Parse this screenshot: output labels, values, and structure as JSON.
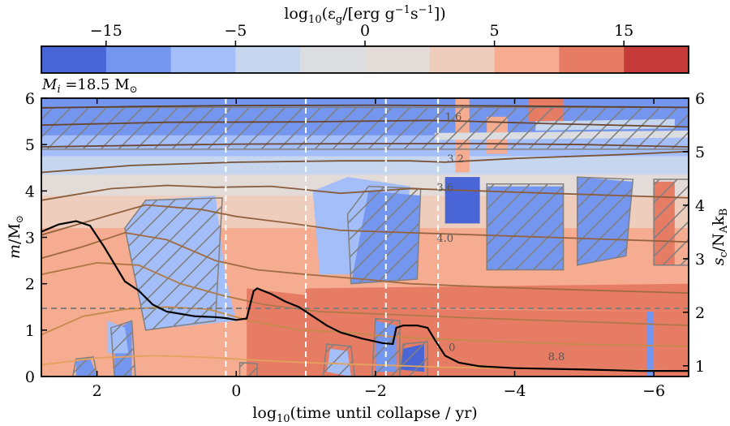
{
  "chart_data": {
    "type": "heatmap",
    "colorbar": {
      "label": "log10(εg/[erg g⁻¹s⁻¹])",
      "label_main": "log",
      "label_sub": "10",
      "label_rest": "(ε",
      "label_sub2": "g",
      "label_tail": "/[erg g",
      "label_sup1": "−1",
      "label_mid": "s",
      "label_sup2": "−1",
      "label_end": "])",
      "bins": [
        -20,
        -15,
        -10,
        -5,
        -2.5,
        0,
        2.5,
        5,
        10,
        15,
        20
      ],
      "colors": [
        "#4a66d6",
        "#7596ee",
        "#a3bef9",
        "#c6d6ef",
        "#dcdde1",
        "#e2dbd8",
        "#efcdbd",
        "#f5ac90",
        "#e77c65",
        "#c73a3a"
      ],
      "ticks": [
        {
          "value": -15,
          "label": "−15"
        },
        {
          "value": -5,
          "label": "−5"
        },
        {
          "value": 0,
          "label": "0"
        },
        {
          "value": 5,
          "label": "5"
        },
        {
          "value": 15,
          "label": "15"
        }
      ]
    },
    "annotation": "Mi =18.5 M⊙",
    "annotation_parts": {
      "m": "M",
      "i": "i",
      "eq": " =18.5 M",
      "sun": "⊙"
    },
    "x_axis": {
      "label": "log10(time until collapse / yr)",
      "range": [
        2.8,
        -6.5
      ],
      "ticks": [
        {
          "value": 2,
          "label": "2"
        },
        {
          "value": 0,
          "label": "0"
        },
        {
          "value": -2,
          "label": "−2"
        },
        {
          "value": -4,
          "label": "−4"
        },
        {
          "value": -6,
          "label": "−6"
        }
      ]
    },
    "y_axis_left": {
      "label": "m/M⊙",
      "range": [
        0,
        6
      ],
      "ticks": [
        0,
        1,
        2,
        3,
        4,
        5,
        6
      ]
    },
    "y_axis_right": {
      "label": "sc/NAkB",
      "range": [
        0.8,
        6
      ],
      "ticks": [
        1,
        2,
        3,
        4,
        5,
        6
      ]
    },
    "vertical_dashed_lines_x": [
      0.15,
      -1.0,
      -2.15,
      -2.9
    ],
    "horizontal_dashed_line_m": 1.47,
    "central_entropy": {
      "x": [
        2.8,
        2.55,
        2.3,
        2.1,
        1.9,
        1.6,
        1.4,
        1.2,
        1.0,
        0.6,
        0.3,
        0.15,
        0.0,
        -0.15,
        -0.25,
        -0.3,
        -0.5,
        -0.7,
        -0.9,
        -1.1,
        -1.3,
        -1.5,
        -1.8,
        -2.1,
        -2.25,
        -2.3,
        -2.4,
        -2.6,
        -2.75,
        -2.85,
        -3.0,
        -3.2,
        -3.5,
        -4.0,
        -5.0,
        -5.8,
        -6.5
      ],
      "y": [
        3.12,
        3.28,
        3.35,
        3.25,
        2.8,
        2.05,
        1.85,
        1.55,
        1.4,
        1.3,
        1.28,
        1.26,
        1.22,
        1.25,
        1.84,
        1.9,
        1.78,
        1.62,
        1.5,
        1.3,
        1.1,
        0.95,
        0.82,
        0.72,
        0.7,
        1.05,
        1.1,
        1.1,
        1.05,
        0.8,
        0.45,
        0.3,
        0.22,
        0.18,
        0.15,
        0.12,
        0.12
      ]
    },
    "mass_contours": [
      {
        "label": "",
        "x": [
          2.8,
          1.5,
          0.0,
          -2.0,
          -4.0,
          -6.5
        ],
        "y": [
          5.79,
          5.82,
          5.84,
          5.85,
          5.83,
          5.8
        ]
      },
      {
        "label": "1.6",
        "x": [
          2.8,
          1.0,
          -1.0,
          -2.8,
          -3.4,
          -4.5,
          -6.5
        ],
        "y": [
          5.42,
          5.48,
          5.49,
          5.52,
          5.5,
          5.45,
          5.38
        ]
      },
      {
        "label": "",
        "x": [
          2.8,
          1.5,
          0.0,
          -2.0,
          -3.5,
          -5.0,
          -6.5
        ],
        "y": [
          4.95,
          4.98,
          5.01,
          5.02,
          5.02,
          5.0,
          4.95
        ]
      },
      {
        "label": "3.2",
        "x": [
          2.8,
          1.5,
          0.0,
          -1.5,
          -2.5,
          -3.0,
          -4.0,
          -5.5,
          -6.5
        ],
        "y": [
          4.4,
          4.55,
          4.62,
          4.65,
          4.65,
          4.62,
          4.7,
          4.78,
          4.85
        ]
      },
      {
        "label": "3.6",
        "x": [
          2.8,
          1.8,
          1.0,
          0.3,
          -0.5,
          -1.5,
          -2.5,
          -3.5,
          -4.5,
          -5.5,
          -6.5
        ],
        "y": [
          3.8,
          4.05,
          4.12,
          4.08,
          4.1,
          3.95,
          4.05,
          4.0,
          3.95,
          3.9,
          3.85
        ]
      },
      {
        "label": "",
        "x": [
          2.8,
          2.0,
          1.3,
          0.5,
          0.0,
          -0.8,
          -1.5,
          -2.5,
          -3.5,
          -4.5,
          -5.5,
          -6.5
        ],
        "y": [
          3.05,
          3.4,
          3.7,
          3.6,
          3.45,
          3.3,
          3.15,
          3.1,
          3.05,
          3.0,
          2.95,
          2.9
        ]
      },
      {
        "label": "4.0",
        "x": [
          2.8,
          2.2,
          1.6,
          1.0,
          0.3,
          -0.3,
          -1.0,
          -1.8,
          -2.5,
          -3.3,
          -4.2,
          -5.3,
          -6.5
        ],
        "y": [
          2.55,
          2.8,
          3.1,
          2.95,
          2.5,
          2.3,
          2.2,
          2.1,
          2.0,
          1.95,
          1.9,
          1.85,
          1.8
        ]
      },
      {
        "label": "",
        "x": [
          2.8,
          2.0,
          1.4,
          0.8,
          0.2,
          -0.4,
          -1.2,
          -2.0,
          -2.8,
          -3.6,
          -4.6,
          -5.6,
          -6.5
        ],
        "y": [
          2.2,
          2.45,
          2.4,
          2.0,
          1.75,
          1.55,
          1.4,
          1.35,
          1.3,
          1.25,
          1.2,
          1.15,
          1.1
        ]
      },
      {
        "label": "",
        "x": [
          2.8,
          2.2,
          1.6,
          1.0,
          0.4,
          -0.2,
          -0.9,
          -1.6,
          -2.3,
          -3.0,
          -3.8,
          -4.8,
          -6.5
        ],
        "y": [
          0.9,
          1.3,
          1.45,
          1.5,
          1.45,
          1.2,
          1.0,
          0.95,
          0.85,
          0.8,
          0.75,
          0.7,
          0.65
        ]
      },
      {
        "label": "8.8",
        "x": [
          2.8,
          2.0,
          1.2,
          0.5,
          -0.3,
          -1.0,
          -2.0,
          -3.0,
          -4.0,
          -5.0,
          -6.5
        ],
        "y": [
          0.25,
          0.4,
          0.45,
          0.42,
          0.35,
          0.3,
          0.25,
          0.2,
          0.18,
          0.15,
          0.12
        ]
      }
    ],
    "inline_contour_labels": [
      {
        "text": "1.6",
        "x": -3.12,
        "y": 5.52
      },
      {
        "text": "3.2",
        "x": -3.15,
        "y": 4.62
      },
      {
        "text": "3.6",
        "x": -3.0,
        "y": 4.0
      },
      {
        "text": "4.0",
        "x": -3.0,
        "y": 2.9
      },
      {
        "text": "0",
        "x": -3.1,
        "y": 0.55
      },
      {
        "text": "8.8",
        "x": -4.6,
        "y": 0.35
      }
    ]
  }
}
